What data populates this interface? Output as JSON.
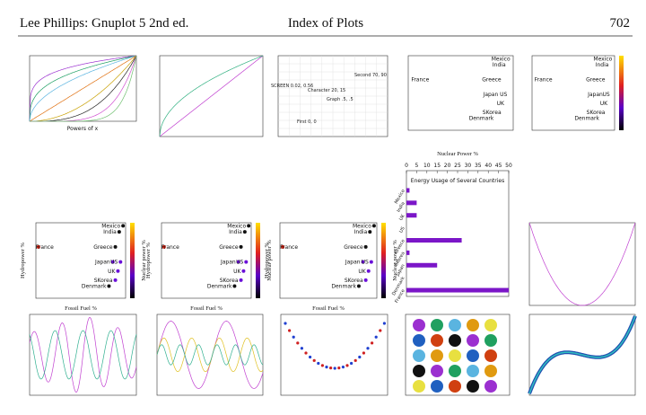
{
  "header": {
    "author": "Lee Phillips: Gnuplot 5 2nd ed.",
    "title": "Index of Plots",
    "page": "702"
  },
  "powers_plot": {
    "xlabel": "Powers of x"
  },
  "text_plot": {
    "labels": [
      "Second 70, 90",
      "Character 20, 15",
      "Graph .5, .5",
      "First 0, 0",
      "SCREEN 0.02, 0.56"
    ]
  },
  "countries": [
    {
      "name": "Mexico",
      "fossil": 78,
      "hydro": 19
    },
    {
      "name": "India",
      "fossil": 75,
      "hydro": 17
    },
    {
      "name": "Greece",
      "fossil": 72,
      "hydro": 12
    },
    {
      "name": "Japan",
      "fossil": 70,
      "hydro": 7
    },
    {
      "name": "US",
      "fossil": 76,
      "hydro": 7
    },
    {
      "name": "UK",
      "fossil": 74,
      "hydro": 4
    },
    {
      "name": "SKorea",
      "fossil": 72,
      "hydro": 1
    },
    {
      "name": "Denmark",
      "fossil": 67,
      "hydro": -1
    },
    {
      "name": "France",
      "fossil": 12,
      "hydro": 12
    }
  ],
  "scatter_axes": {
    "xlabel": "Fossil Fuel %",
    "ylabel": "Hydropower %",
    "clabel": "Nuclear power %"
  },
  "energy_chart": {
    "title": "Energy Usage of Several Countries",
    "axis_title": "Nuclear Power %",
    "categories": [
      "Mexico",
      "India",
      "UK",
      "US",
      "Greece",
      "SKorea",
      "Japan",
      "Denmark",
      "France"
    ],
    "values": [
      1.5,
      5,
      5,
      0,
      27,
      1.5,
      15,
      0,
      50
    ],
    "xlim": [
      0,
      50
    ],
    "xticks": [
      0,
      5,
      10,
      15,
      20,
      25,
      30,
      35,
      40,
      45,
      50
    ]
  }
}
